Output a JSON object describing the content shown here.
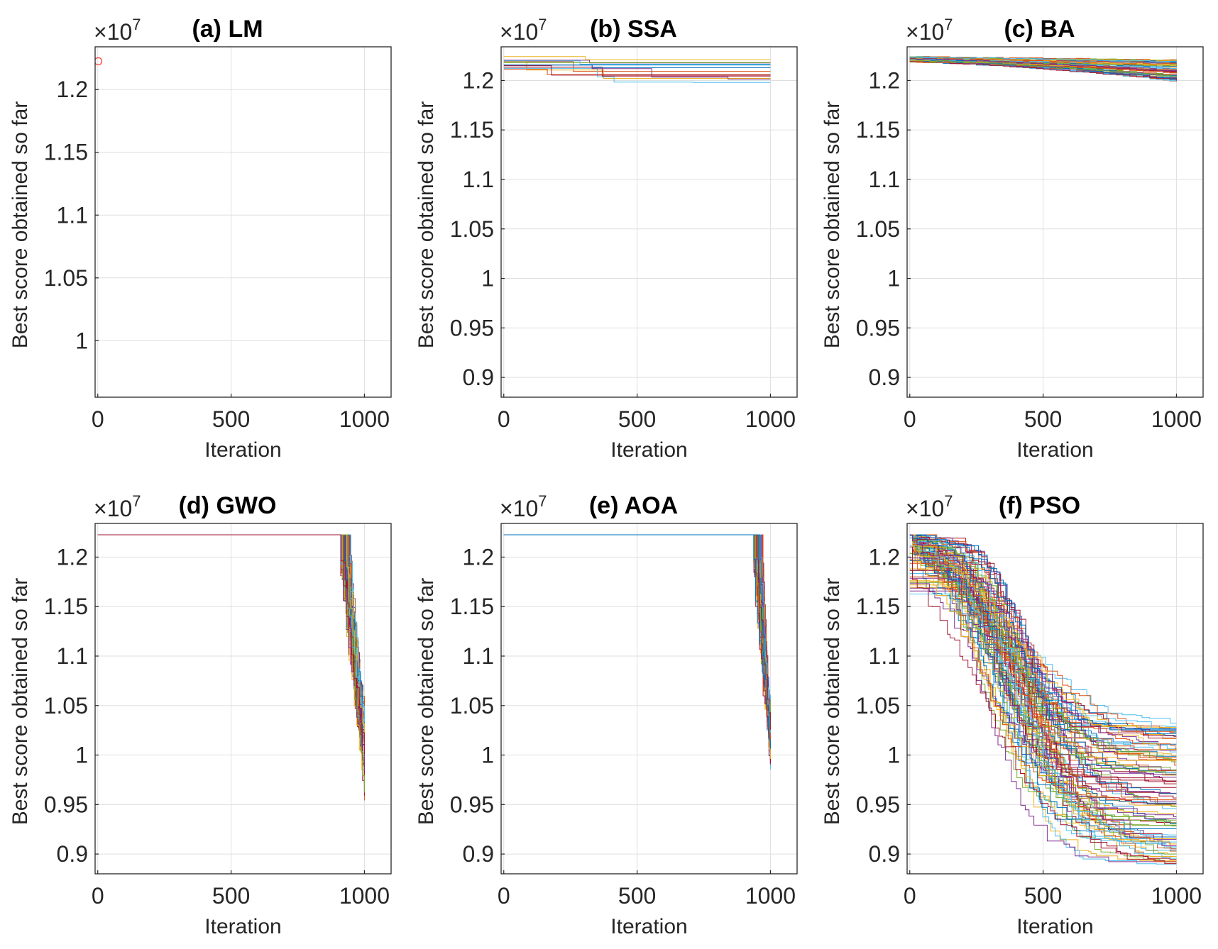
{
  "chart_data": [
    {
      "type": "line",
      "id": "lm",
      "title": "(a) LM",
      "xlabel": "Iteration",
      "ylabel": "Best score obtained so far",
      "multiplier_base": "×10",
      "multiplier_exp": "7",
      "xlim": [
        -10,
        1100
      ],
      "ylim": [
        0.955,
        1.234
      ],
      "xticks": [
        0,
        500,
        1000
      ],
      "xtick_labels": [
        "0",
        "500",
        "1000"
      ],
      "yticks": [
        1.0,
        1.05,
        1.1,
        1.15,
        1.2
      ],
      "ytick_labels": [
        "1",
        "1.05",
        "1.1",
        "1.15",
        "1.2"
      ],
      "grid": true,
      "pattern": "marker",
      "marker_point": {
        "x": 2,
        "y": 1.2225,
        "color": "#ff3b3b"
      }
    },
    {
      "type": "line",
      "id": "ssa",
      "title": "(b) SSA",
      "xlabel": "Iteration",
      "ylabel": "Best score obtained so far",
      "multiplier_base": "×10",
      "multiplier_exp": "7",
      "xlim": [
        -10,
        1100
      ],
      "ylim": [
        0.88,
        1.234
      ],
      "xticks": [
        0,
        500,
        1000
      ],
      "xtick_labels": [
        "0",
        "500",
        "1000"
      ],
      "yticks": [
        0.9,
        0.95,
        1.0,
        1.05,
        1.1,
        1.15,
        1.2
      ],
      "ytick_labels": [
        "0.9",
        "0.95",
        "1",
        "1.05",
        "1.1",
        "1.15",
        "1.2"
      ],
      "grid": true,
      "pattern": "ssa",
      "n_runs": 14,
      "x_end": 1000
    },
    {
      "type": "line",
      "id": "ba",
      "title": "(c) BA",
      "xlabel": "Iteration",
      "ylabel": "Best score obtained so far",
      "multiplier_base": "×10",
      "multiplier_exp": "7",
      "xlim": [
        -10,
        1100
      ],
      "ylim": [
        0.88,
        1.234
      ],
      "xticks": [
        0,
        500,
        1000
      ],
      "xtick_labels": [
        "0",
        "500",
        "1000"
      ],
      "yticks": [
        0.9,
        0.95,
        1.0,
        1.05,
        1.1,
        1.15,
        1.2
      ],
      "ytick_labels": [
        "0.9",
        "0.95",
        "1",
        "1.05",
        "1.1",
        "1.15",
        "1.2"
      ],
      "grid": true,
      "pattern": "ba",
      "n_runs": 60,
      "x_end": 1000
    },
    {
      "type": "line",
      "id": "gwo",
      "title": "(d) GWO",
      "xlabel": "Iteration",
      "ylabel": "Best score obtained so far",
      "multiplier_base": "×10",
      "multiplier_exp": "7",
      "xlim": [
        -10,
        1100
      ],
      "ylim": [
        0.88,
        1.234
      ],
      "xticks": [
        0,
        500,
        1000
      ],
      "xtick_labels": [
        "0",
        "500",
        "1000"
      ],
      "yticks": [
        0.9,
        0.95,
        1.0,
        1.05,
        1.1,
        1.15,
        1.2
      ],
      "ytick_labels": [
        "0.9",
        "0.95",
        "1",
        "1.05",
        "1.1",
        "1.15",
        "1.2"
      ],
      "grid": true,
      "pattern": "drop",
      "n_runs": 60,
      "x_end": 1000,
      "drop_start": [
        900,
        945
      ],
      "final_range": [
        0.955,
        1.04
      ]
    },
    {
      "type": "line",
      "id": "aoa",
      "title": "(e) AOA",
      "xlabel": "Iteration",
      "ylabel": "Best score obtained so far",
      "multiplier_base": "×10",
      "multiplier_exp": "7",
      "xlim": [
        -10,
        1100
      ],
      "ylim": [
        0.88,
        1.234
      ],
      "xticks": [
        0,
        500,
        1000
      ],
      "xtick_labels": [
        "0",
        "500",
        "1000"
      ],
      "yticks": [
        0.9,
        0.95,
        1.0,
        1.05,
        1.1,
        1.15,
        1.2
      ],
      "ytick_labels": [
        "0.9",
        "0.95",
        "1",
        "1.05",
        "1.1",
        "1.15",
        "1.2"
      ],
      "grid": true,
      "pattern": "drop",
      "n_runs": 60,
      "x_end": 1000,
      "drop_start": [
        930,
        970
      ],
      "final_range": [
        0.99,
        1.04
      ]
    },
    {
      "type": "line",
      "id": "pso",
      "title": "(f) PSO",
      "xlabel": "Iteration",
      "ylabel": "Best score obtained so far",
      "multiplier_base": "×10",
      "multiplier_exp": "7",
      "xlim": [
        -10,
        1100
      ],
      "ylim": [
        0.88,
        1.234
      ],
      "xticks": [
        0,
        500,
        1000
      ],
      "xtick_labels": [
        "0",
        "500",
        "1000"
      ],
      "yticks": [
        0.9,
        0.95,
        1.0,
        1.05,
        1.1,
        1.15,
        1.2
      ],
      "ytick_labels": [
        "0.9",
        "0.95",
        "1",
        "1.05",
        "1.1",
        "1.15",
        "1.2"
      ],
      "grid": true,
      "pattern": "pso",
      "n_runs": 90,
      "x_end": 1000,
      "final_range": [
        0.885,
        1.03
      ]
    }
  ],
  "colors": {
    "series_palette": [
      "#0072BD",
      "#D95319",
      "#EDB120",
      "#7E2F8E",
      "#77AC30",
      "#4DBEEE",
      "#A2142F"
    ],
    "axis": "#262626",
    "grid": "#dfdfdf",
    "marker": "#ff3b3b"
  },
  "start_value": 1.2225
}
